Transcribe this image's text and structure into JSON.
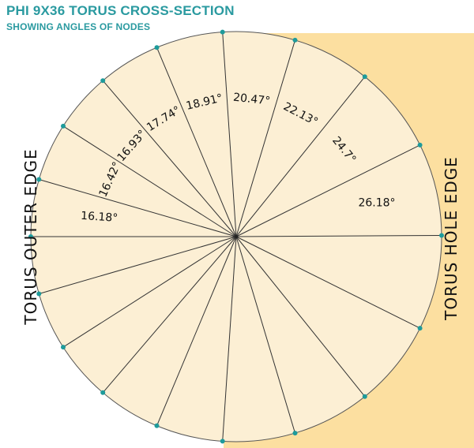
{
  "title": "PHI 9X36 TORUS CROSS-SECTION",
  "subtitle": "SHOWING ANGLES OF NODES",
  "edges": {
    "outer": "TORUS OUTER EDGE",
    "hole": "TORUS HOLE EDGE"
  },
  "colors": {
    "title": "#2a9aa0",
    "circle_fill": "#fcefd4",
    "hole_fill": "#fcdfa0",
    "line": "#333333",
    "node": "#1e9b9b"
  },
  "angles": [
    "16.18°",
    "16.42°",
    "16.93°",
    "17.74°",
    "18.91°",
    "20.47°",
    "22.13°",
    "24.7°",
    "26.18°"
  ],
  "angle_values": [
    16.18,
    16.42,
    16.93,
    17.74,
    18.91,
    20.47,
    22.13,
    24.7,
    26.18
  ]
}
